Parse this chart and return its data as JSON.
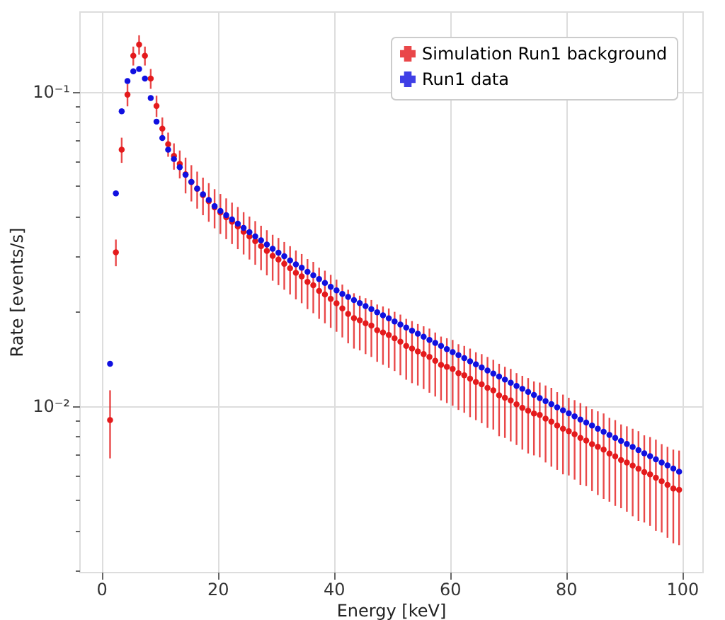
{
  "chart_data": {
    "type": "scatter",
    "xlabel": "Energy [keV]",
    "ylabel": "Rate [events/s]",
    "log": "y",
    "grid": true,
    "legend": "top right",
    "marker": "circle",
    "xlim": [
      -3.8,
      103.5
    ],
    "xticks": [
      0,
      20,
      40,
      60,
      80,
      100
    ],
    "ylim": [
      0.00296,
      0.18
    ],
    "yticks": [
      {
        "value": 0.003,
        "label": null
      },
      {
        "value": 0.004,
        "label": null
      },
      {
        "value": 0.005,
        "label": null
      },
      {
        "value": 0.006,
        "label": null
      },
      {
        "value": 0.007,
        "label": null
      },
      {
        "value": 0.008,
        "label": null
      },
      {
        "value": 0.009,
        "label": null
      },
      {
        "value": 0.01,
        "label": "10⁻²"
      },
      {
        "value": 0.02,
        "label": null
      },
      {
        "value": 0.03,
        "label": null
      },
      {
        "value": 0.04,
        "label": null
      },
      {
        "value": 0.05,
        "label": null
      },
      {
        "value": 0.06,
        "label": null
      },
      {
        "value": 0.07,
        "label": null
      },
      {
        "value": 0.08,
        "label": null
      },
      {
        "value": 0.09,
        "label": null
      },
      {
        "value": 0.1,
        "label": "10⁻¹"
      }
    ],
    "x": [
      1.5,
      2.5,
      3.5,
      4.5,
      5.5,
      6.5,
      7.5,
      8.5,
      9.5,
      10.5,
      11.5,
      12.5,
      13.5,
      14.5,
      15.5,
      16.5,
      17.5,
      18.5,
      19.5,
      20.5,
      21.5,
      22.5,
      23.5,
      24.5,
      25.5,
      26.5,
      27.5,
      28.5,
      29.5,
      30.5,
      31.5,
      32.5,
      33.5,
      34.5,
      35.5,
      36.5,
      37.5,
      38.5,
      39.5,
      40.5,
      41.5,
      42.5,
      43.5,
      44.5,
      45.5,
      46.5,
      47.5,
      48.5,
      49.5,
      50.5,
      51.5,
      52.5,
      53.5,
      54.5,
      55.5,
      56.5,
      57.5,
      58.5,
      59.5,
      60.5,
      61.5,
      62.5,
      63.5,
      64.5,
      65.5,
      66.5,
      67.5,
      68.5,
      69.5,
      70.5,
      71.5,
      72.5,
      73.5,
      74.5,
      75.5,
      76.5,
      77.5,
      78.5,
      79.5,
      80.5,
      81.5,
      82.5,
      83.5,
      84.5,
      85.5,
      86.5,
      87.5,
      88.5,
      89.5,
      90.5,
      91.5,
      92.5,
      93.5,
      94.5,
      95.5,
      96.5,
      97.5,
      98.5,
      99.5
    ],
    "series": [
      {
        "name": "Simulation Run1 background",
        "color": "#e41a1c",
        "values": [
          0.009,
          0.0308,
          0.0653,
          0.0977,
          0.13,
          0.141,
          0.13,
          0.11,
          0.09,
          0.0762,
          0.068,
          0.0624,
          0.0589,
          0.0545,
          0.0515,
          0.049,
          0.0468,
          0.0448,
          0.0428,
          0.0412,
          0.0398,
          0.0385,
          0.0372,
          0.0358,
          0.0346,
          0.0334,
          0.0322,
          0.0311,
          0.03,
          0.0292,
          0.0283,
          0.0274,
          0.0265,
          0.0258,
          0.0248,
          0.0242,
          0.0232,
          0.0226,
          0.0219,
          0.0212,
          0.0204,
          0.0196,
          0.019,
          0.0187,
          0.0183,
          0.018,
          0.0174,
          0.0171,
          0.0168,
          0.0164,
          0.016,
          0.0155,
          0.0152,
          0.0149,
          0.0146,
          0.0143,
          0.0139,
          0.0135,
          0.0133,
          0.0131,
          0.0127,
          0.0125,
          0.0122,
          0.0119,
          0.0117,
          0.0114,
          0.0112,
          0.0108,
          0.0106,
          0.0104,
          0.0101,
          0.00985,
          0.00965,
          0.00945,
          0.00935,
          0.0091,
          0.0089,
          0.00865,
          0.00845,
          0.0083,
          0.00812,
          0.0079,
          0.00775,
          0.00755,
          0.0074,
          0.00725,
          0.00705,
          0.0069,
          0.00672,
          0.0066,
          0.00645,
          0.0063,
          0.00615,
          0.00605,
          0.0059,
          0.00575,
          0.0056,
          0.00545,
          0.0054
        ],
        "errors": [
          0.0022,
          0.003,
          0.006,
          0.008,
          0.009,
          0.01,
          0.009,
          0.008,
          0.007,
          0.0065,
          0.006,
          0.006,
          0.006,
          0.0071,
          0.0068,
          0.0066,
          0.0064,
          0.0063,
          0.0061,
          0.006,
          0.0059,
          0.0058,
          0.0057,
          0.0055,
          0.0054,
          0.0053,
          0.0052,
          0.0051,
          0.005,
          0.005,
          0.0049,
          0.0048,
          0.0047,
          0.0046,
          0.0045,
          0.0045,
          0.0043,
          0.0043,
          0.0042,
          0.004,
          0.0039,
          0.0038,
          0.0038,
          0.0037,
          0.0037,
          0.0037,
          0.0036,
          0.0036,
          0.0036,
          0.0035,
          0.0035,
          0.0034,
          0.0034,
          0.0033,
          0.0033,
          0.0033,
          0.0032,
          0.0031,
          0.0031,
          0.0031,
          0.003,
          0.003,
          0.003,
          0.0029,
          0.0029,
          0.0029,
          0.0028,
          0.0028,
          0.0027,
          0.0027,
          0.0026,
          0.0026,
          0.0026,
          0.0025,
          0.0025,
          0.0025,
          0.0025,
          0.0024,
          0.0024,
          0.0023,
          0.0023,
          0.0023,
          0.0022,
          0.0022,
          0.0022,
          0.0022,
          0.0021,
          0.0021,
          0.002,
          0.002,
          0.002,
          0.002,
          0.0019,
          0.0019,
          0.0019,
          0.0018,
          0.0018,
          0.0018,
          0.0018
        ]
      },
      {
        "name": "Run1 data",
        "color": "#1010e0",
        "values": [
          0.0136,
          0.0474,
          0.0865,
          0.108,
          0.116,
          0.118,
          0.11,
          0.0953,
          0.0802,
          0.0711,
          0.0653,
          0.061,
          0.0574,
          0.0543,
          0.0516,
          0.0491,
          0.0471,
          0.0452,
          0.0432,
          0.0417,
          0.0404,
          0.0392,
          0.038,
          0.0368,
          0.0357,
          0.0346,
          0.0336,
          0.0326,
          0.0316,
          0.0307,
          0.0299,
          0.029,
          0.0282,
          0.0275,
          0.0267,
          0.026,
          0.0253,
          0.0246,
          0.0239,
          0.0233,
          0.0227,
          0.0222,
          0.0217,
          0.02122,
          0.02075,
          0.02029,
          0.01984,
          0.0194,
          0.01897,
          0.01855,
          0.01813,
          0.01773,
          0.01734,
          0.01695,
          0.01658,
          0.01621,
          0.01585,
          0.0155,
          0.01515,
          0.01482,
          0.01449,
          0.01417,
          0.01385,
          0.01354,
          0.01324,
          0.01295,
          0.01266,
          0.01238,
          0.01211,
          0.01184,
          0.01157,
          0.01132,
          0.01107,
          0.01082,
          0.01058,
          0.01035,
          0.01012,
          0.00989,
          0.00967,
          0.00946,
          0.00925,
          0.00904,
          0.00884,
          0.00865,
          0.00845,
          0.00827,
          0.00808,
          0.0079,
          0.00773,
          0.00756,
          0.00739,
          0.00722,
          0.00706,
          0.00691,
          0.00675,
          0.0066,
          0.00646,
          0.00631,
          0.00617
        ]
      }
    ]
  }
}
